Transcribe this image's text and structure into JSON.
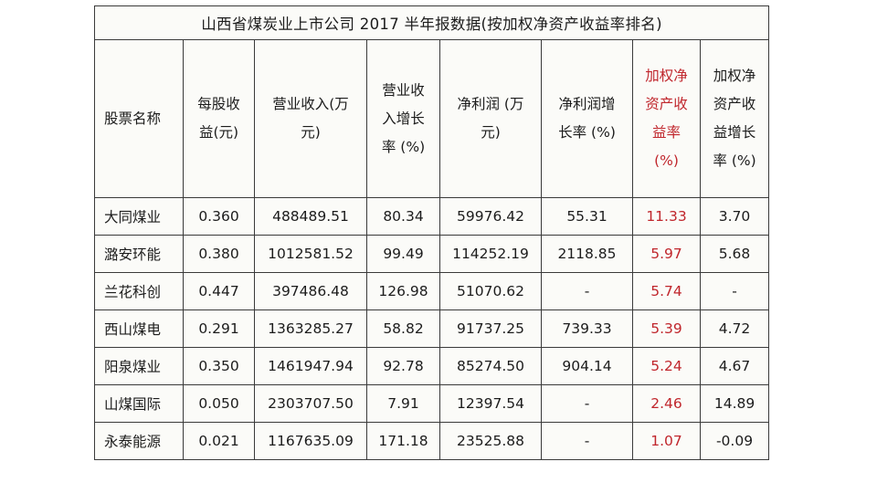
{
  "title": "山西省煤炭业上市公司 2017 半年报数据(按加权净资产收益率排名)",
  "accent_color": "#c0262c",
  "columns": [
    {
      "lines": [
        "股票名称"
      ],
      "highlight": false
    },
    {
      "lines": [
        "每股收",
        "益(元)"
      ],
      "highlight": false
    },
    {
      "lines": [
        "营业收入(万",
        "元)"
      ],
      "highlight": false
    },
    {
      "lines": [
        "营业收",
        "入增长",
        "率 (%)"
      ],
      "highlight": false
    },
    {
      "lines": [
        "净利润 (万",
        "元)"
      ],
      "highlight": false
    },
    {
      "lines": [
        "净利润增",
        "长率 (%)"
      ],
      "highlight": false
    },
    {
      "lines": [
        "加权净",
        "资产收",
        "益率",
        "(%)"
      ],
      "highlight": true
    },
    {
      "lines": [
        "加权净",
        "资产收",
        "益增长",
        "率 (%)"
      ],
      "highlight": false
    }
  ],
  "rows": [
    [
      "大同煤业",
      "0.360",
      "488489.51",
      "80.34",
      "59976.42",
      "55.31",
      "11.33",
      "3.70"
    ],
    [
      "潞安环能",
      "0.380",
      "1012581.52",
      "99.49",
      "114252.19",
      "2118.85",
      "5.97",
      "5.68"
    ],
    [
      "兰花科创",
      "0.447",
      "397486.48",
      "126.98",
      "51070.62",
      "-",
      "5.74",
      "-"
    ],
    [
      "西山煤电",
      "0.291",
      "1363285.27",
      "58.82",
      "91737.25",
      "739.33",
      "5.39",
      "4.72"
    ],
    [
      "阳泉煤业",
      "0.350",
      "1461947.94",
      "92.78",
      "85274.50",
      "904.14",
      "5.24",
      "4.67"
    ],
    [
      "山煤国际",
      "0.050",
      "2303707.50",
      "7.91",
      "12397.54",
      "-",
      "2.46",
      "14.89"
    ],
    [
      "永泰能源",
      "0.021",
      "1167635.09",
      "171.18",
      "23525.88",
      "-",
      "1.07",
      "-0.09"
    ]
  ]
}
